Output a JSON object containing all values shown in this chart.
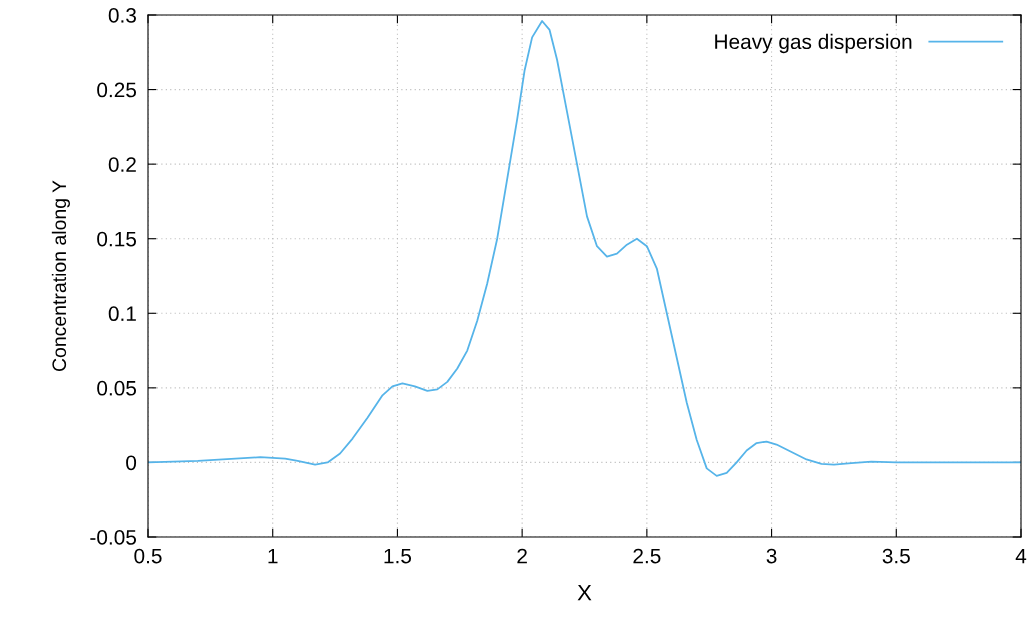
{
  "chart_data": {
    "type": "line",
    "xlabel": "X",
    "ylabel": "Concentration along Y",
    "xlim": [
      0.5,
      4
    ],
    "ylim": [
      -0.05,
      0.3
    ],
    "xticks": [
      0.5,
      1,
      1.5,
      2,
      2.5,
      3,
      3.5,
      4
    ],
    "yticks": [
      -0.05,
      0,
      0.05,
      0.1,
      0.15,
      0.2,
      0.25,
      0.3
    ],
    "grid": true,
    "legend": "top right",
    "line_style": "solid",
    "marker": "none",
    "series": [
      {
        "name": "Heavy gas dispersion",
        "color": "#56b4e9",
        "x": [
          0.5,
          0.7,
          0.9,
          0.95,
          1.05,
          1.1,
          1.17,
          1.22,
          1.27,
          1.32,
          1.38,
          1.44,
          1.48,
          1.52,
          1.57,
          1.62,
          1.66,
          1.7,
          1.74,
          1.78,
          1.82,
          1.86,
          1.9,
          1.94,
          1.98,
          2.01,
          2.04,
          2.08,
          2.11,
          2.14,
          2.18,
          2.22,
          2.26,
          2.3,
          2.34,
          2.38,
          2.42,
          2.46,
          2.5,
          2.54,
          2.58,
          2.62,
          2.66,
          2.7,
          2.74,
          2.78,
          2.82,
          2.86,
          2.9,
          2.94,
          2.98,
          3.02,
          3.08,
          3.14,
          3.2,
          3.25,
          3.32,
          3.4,
          3.5,
          4.0
        ],
        "values": [
          0,
          0.001,
          0.003,
          0.0035,
          0.0025,
          0.001,
          -0.0015,
          0.0,
          0.006,
          0.016,
          0.03,
          0.045,
          0.051,
          0.053,
          0.051,
          0.048,
          0.049,
          0.054,
          0.063,
          0.075,
          0.095,
          0.12,
          0.15,
          0.19,
          0.23,
          0.263,
          0.285,
          0.296,
          0.29,
          0.27,
          0.235,
          0.2,
          0.165,
          0.145,
          0.138,
          0.14,
          0.146,
          0.15,
          0.145,
          0.13,
          0.1,
          0.07,
          0.04,
          0.015,
          -0.004,
          -0.009,
          -0.007,
          0.0,
          0.008,
          0.013,
          0.014,
          0.012,
          0.007,
          0.002,
          -0.001,
          -0.0015,
          -0.0005,
          0.0005,
          0.0,
          0
        ]
      }
    ]
  }
}
